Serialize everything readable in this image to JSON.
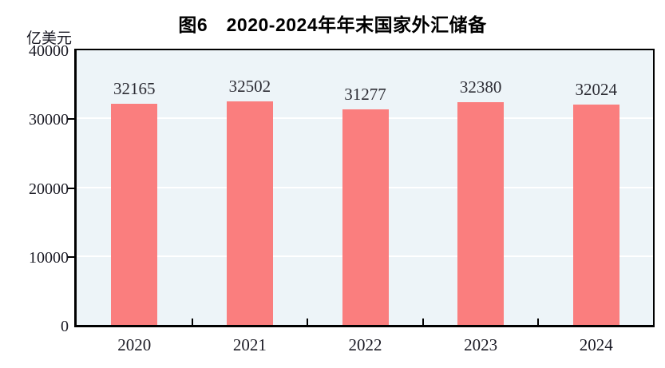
{
  "chart_data": {
    "type": "bar",
    "title": "图6　2020-2024年年末国家外汇储备",
    "unit": "亿美元",
    "categories": [
      "2020",
      "2021",
      "2022",
      "2023",
      "2024"
    ],
    "values": [
      32165,
      32502,
      31277,
      32380,
      32024
    ],
    "ylim": [
      0,
      40000
    ],
    "yticks": [
      0,
      10000,
      20000,
      30000,
      40000
    ],
    "grid": "horizontal-white",
    "legend": "none",
    "colors": {
      "bar": "#FA7E7E",
      "plot_background": "#EDF4F8",
      "gridline": "#FFFFFF",
      "axis": "#000000",
      "tick_text": "#1A1A24",
      "value_label_text": "#2B2B33",
      "title_text": "#000000"
    }
  }
}
